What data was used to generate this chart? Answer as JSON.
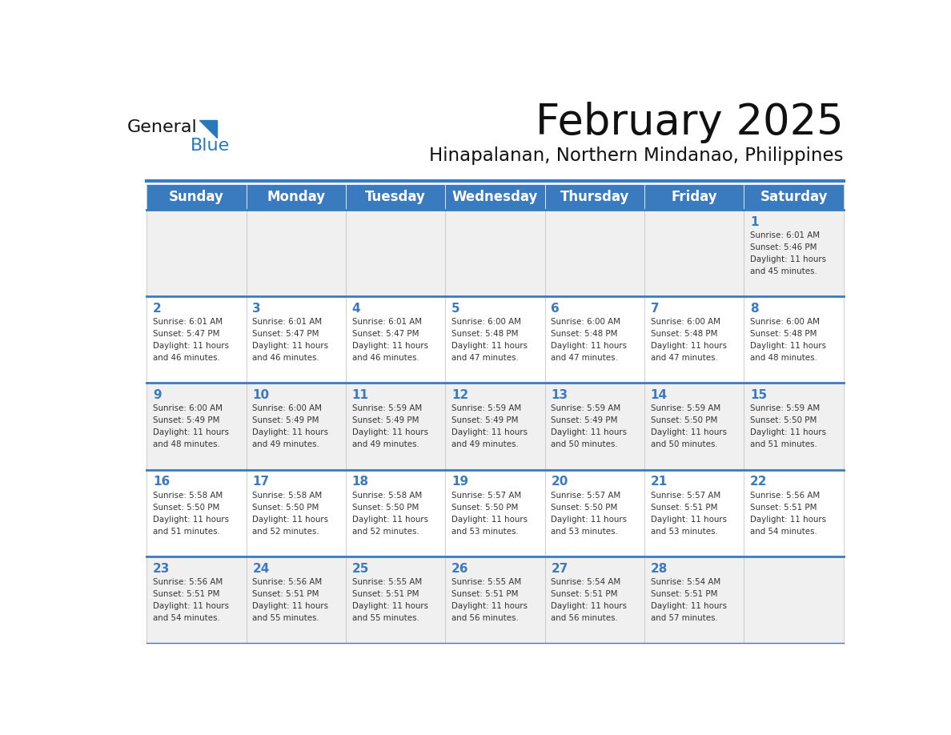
{
  "title": "February 2025",
  "subtitle": "Hinapalanan, Northern Mindanao, Philippines",
  "days_of_week": [
    "Sunday",
    "Monday",
    "Tuesday",
    "Wednesday",
    "Thursday",
    "Friday",
    "Saturday"
  ],
  "header_bg": "#3a7abf",
  "header_text": "#ffffff",
  "row_bg_odd": "#f0f0f0",
  "row_bg_even": "#ffffff",
  "border_color": "#3a7abf",
  "day_num_color": "#3a7abf",
  "cell_text_color": "#333333",
  "title_color": "#111111",
  "subtitle_color": "#111111",
  "logo_general_color": "#111111",
  "logo_blue_color": "#2878bb",
  "top_line_color": "#3a7abf",
  "calendar_data": [
    [
      null,
      null,
      null,
      null,
      null,
      null,
      {
        "day": 1,
        "sunrise": "6:01 AM",
        "sunset": "5:46 PM",
        "daylight": "11 hours and 45 minutes."
      }
    ],
    [
      {
        "day": 2,
        "sunrise": "6:01 AM",
        "sunset": "5:47 PM",
        "daylight": "11 hours and 46 minutes."
      },
      {
        "day": 3,
        "sunrise": "6:01 AM",
        "sunset": "5:47 PM",
        "daylight": "11 hours and 46 minutes."
      },
      {
        "day": 4,
        "sunrise": "6:01 AM",
        "sunset": "5:47 PM",
        "daylight": "11 hours and 46 minutes."
      },
      {
        "day": 5,
        "sunrise": "6:00 AM",
        "sunset": "5:48 PM",
        "daylight": "11 hours and 47 minutes."
      },
      {
        "day": 6,
        "sunrise": "6:00 AM",
        "sunset": "5:48 PM",
        "daylight": "11 hours and 47 minutes."
      },
      {
        "day": 7,
        "sunrise": "6:00 AM",
        "sunset": "5:48 PM",
        "daylight": "11 hours and 47 minutes."
      },
      {
        "day": 8,
        "sunrise": "6:00 AM",
        "sunset": "5:48 PM",
        "daylight": "11 hours and 48 minutes."
      }
    ],
    [
      {
        "day": 9,
        "sunrise": "6:00 AM",
        "sunset": "5:49 PM",
        "daylight": "11 hours and 48 minutes."
      },
      {
        "day": 10,
        "sunrise": "6:00 AM",
        "sunset": "5:49 PM",
        "daylight": "11 hours and 49 minutes."
      },
      {
        "day": 11,
        "sunrise": "5:59 AM",
        "sunset": "5:49 PM",
        "daylight": "11 hours and 49 minutes."
      },
      {
        "day": 12,
        "sunrise": "5:59 AM",
        "sunset": "5:49 PM",
        "daylight": "11 hours and 49 minutes."
      },
      {
        "day": 13,
        "sunrise": "5:59 AM",
        "sunset": "5:49 PM",
        "daylight": "11 hours and 50 minutes."
      },
      {
        "day": 14,
        "sunrise": "5:59 AM",
        "sunset": "5:50 PM",
        "daylight": "11 hours and 50 minutes."
      },
      {
        "day": 15,
        "sunrise": "5:59 AM",
        "sunset": "5:50 PM",
        "daylight": "11 hours and 51 minutes."
      }
    ],
    [
      {
        "day": 16,
        "sunrise": "5:58 AM",
        "sunset": "5:50 PM",
        "daylight": "11 hours and 51 minutes."
      },
      {
        "day": 17,
        "sunrise": "5:58 AM",
        "sunset": "5:50 PM",
        "daylight": "11 hours and 52 minutes."
      },
      {
        "day": 18,
        "sunrise": "5:58 AM",
        "sunset": "5:50 PM",
        "daylight": "11 hours and 52 minutes."
      },
      {
        "day": 19,
        "sunrise": "5:57 AM",
        "sunset": "5:50 PM",
        "daylight": "11 hours and 53 minutes."
      },
      {
        "day": 20,
        "sunrise": "5:57 AM",
        "sunset": "5:50 PM",
        "daylight": "11 hours and 53 minutes."
      },
      {
        "day": 21,
        "sunrise": "5:57 AM",
        "sunset": "5:51 PM",
        "daylight": "11 hours and 53 minutes."
      },
      {
        "day": 22,
        "sunrise": "5:56 AM",
        "sunset": "5:51 PM",
        "daylight": "11 hours and 54 minutes."
      }
    ],
    [
      {
        "day": 23,
        "sunrise": "5:56 AM",
        "sunset": "5:51 PM",
        "daylight": "11 hours and 54 minutes."
      },
      {
        "day": 24,
        "sunrise": "5:56 AM",
        "sunset": "5:51 PM",
        "daylight": "11 hours and 55 minutes."
      },
      {
        "day": 25,
        "sunrise": "5:55 AM",
        "sunset": "5:51 PM",
        "daylight": "11 hours and 55 minutes."
      },
      {
        "day": 26,
        "sunrise": "5:55 AM",
        "sunset": "5:51 PM",
        "daylight": "11 hours and 56 minutes."
      },
      {
        "day": 27,
        "sunrise": "5:54 AM",
        "sunset": "5:51 PM",
        "daylight": "11 hours and 56 minutes."
      },
      {
        "day": 28,
        "sunrise": "5:54 AM",
        "sunset": "5:51 PM",
        "daylight": "11 hours and 57 minutes."
      },
      null
    ]
  ]
}
